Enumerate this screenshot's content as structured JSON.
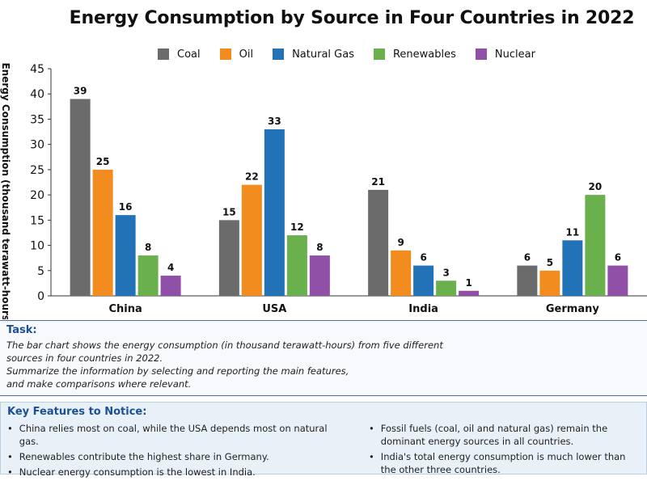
{
  "chart_data": {
    "type": "bar",
    "title": "Energy Consumption by Source in Four Countries in 2022",
    "ylabel": "Energy Consumption (thousand terawatt-hours)",
    "xlabel": "",
    "ylim": [
      0,
      45
    ],
    "yticks": [
      0,
      5,
      10,
      15,
      20,
      25,
      30,
      35,
      40,
      45
    ],
    "categories": [
      "China",
      "USA",
      "India",
      "Germany"
    ],
    "series": [
      {
        "name": "Coal",
        "color": "#6b6b6b",
        "values": [
          39,
          15,
          21,
          6
        ]
      },
      {
        "name": "Oil",
        "color": "#f28c1e",
        "values": [
          25,
          22,
          9,
          5
        ]
      },
      {
        "name": "Natural Gas",
        "color": "#2272b8",
        "values": [
          16,
          33,
          6,
          11
        ]
      },
      {
        "name": "Renewables",
        "color": "#6ab04c",
        "values": [
          8,
          12,
          3,
          20
        ]
      },
      {
        "name": "Nuclear",
        "color": "#9150a8",
        "values": [
          4,
          8,
          1,
          6
        ]
      }
    ],
    "legend": "top",
    "grid": false
  },
  "task": {
    "heading": "Task:",
    "lines": [
      "The bar chart shows the energy consumption (in thousand terawatt-hours) from five different",
      "sources in four countries in 2022.",
      "Summarize the information by selecting and reporting the main features,",
      "and make comparisons where relevant."
    ]
  },
  "key_features": {
    "heading": "Key Features to Notice:",
    "left": [
      "China relies most on coal, while the USA depends most on natural gas.",
      "Renewables contribute the highest share in Germany.",
      "Nuclear energy consumption is the lowest in India."
    ],
    "right": [
      "Fossil fuels (coal, oil and natural gas) remain the dominant energy sources in all countries.",
      "India's total energy consumption is much lower than the other three countries."
    ]
  }
}
